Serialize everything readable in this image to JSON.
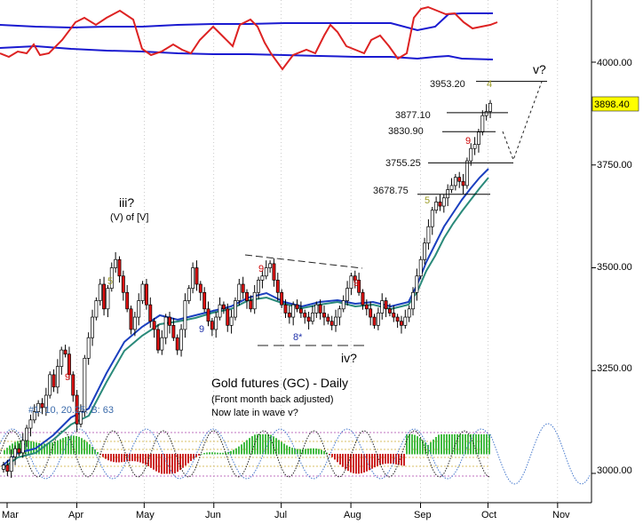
{
  "chart_data": {
    "type": "candlestick",
    "title": "Gold futures (GC) - Daily",
    "subtitle_lines": [
      "(Front month back adjusted)",
      "Now late in wave v?"
    ],
    "last_price": "3898.40",
    "y_axis": {
      "range": [
        2930,
        4130
      ],
      "ticks": [
        "4000.00",
        "3750.00",
        "3500.00",
        "3250.00",
        "3000.00"
      ],
      "tick_values": [
        4000,
        3750,
        3500,
        3250,
        3000
      ]
    },
    "x_axis": {
      "labels": [
        "Mar",
        "Apr",
        "May",
        "Jun",
        "Jul",
        "Aug",
        "Sep",
        "Oct",
        "Nov"
      ],
      "label_days": [
        0,
        31,
        61,
        92,
        122,
        153,
        184,
        214,
        245
      ]
    },
    "price_levels": [
      {
        "label": "3953.20",
        "value": 3953.2
      },
      {
        "label": "3877.10",
        "value": 3877.1
      },
      {
        "label": "3830.90",
        "value": 3830.9
      },
      {
        "label": "3755.25",
        "value": 3755.25
      },
      {
        "label": "3678.75",
        "value": 3678.75
      }
    ],
    "wave_labels": [
      {
        "text": "iii?",
        "color": "#000000"
      },
      {
        "text": "(V) of [V]",
        "color": "#000000"
      },
      {
        "text": "iv?",
        "color": "#000000"
      },
      {
        "text": "v?",
        "color": "#000000"
      },
      {
        "text": "4",
        "color": "#9a9a22"
      },
      {
        "text": "5",
        "color": "#9a9a22"
      },
      {
        "text": "5",
        "color": "#9a9a22"
      },
      {
        "text": "9",
        "color": "#cc0000"
      },
      {
        "text": "9",
        "color": "#cc0000"
      },
      {
        "text": "9",
        "color": "#cc0000"
      },
      {
        "text": "9",
        "color": "#cc0000"
      },
      {
        "text": "9",
        "color": "#2233aa"
      },
      {
        "text": "8*",
        "color": "#2233aa"
      }
    ],
    "cycle_label": "#1: 10, 20.25, B: 63",
    "series": [
      {
        "name": "Gold futures price",
        "color": "#000000"
      },
      {
        "name": "Moving average (fast)",
        "color": "#1a3fbf"
      },
      {
        "name": "Moving average (slow)",
        "color": "#2a8a7a"
      },
      {
        "name": "Oscillator (top panel)",
        "color": "#dd2222"
      },
      {
        "name": "Oscillator bands",
        "color": "#1a1ad0"
      },
      {
        "name": "Cycle histogram",
        "color": "#33aa33"
      },
      {
        "name": "Projected cycle",
        "color": "#4477cc"
      }
    ]
  }
}
